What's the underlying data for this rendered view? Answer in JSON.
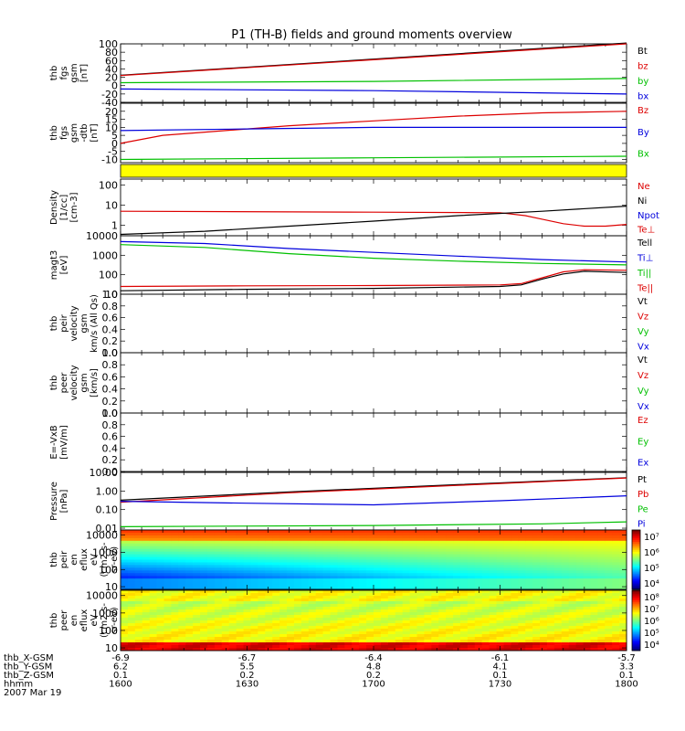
{
  "figure": {
    "title": "P1 (TH-B) fields and ground moments overview"
  },
  "chart_data": [
    {
      "type": "line",
      "ylabel_lines": [
        "thb",
        "fgs",
        "gsm",
        "[nT]"
      ],
      "ylim": [
        -40,
        100
      ],
      "yticks": [
        "100",
        "80",
        "60",
        "40",
        "20",
        "0",
        "-20",
        "-40"
      ],
      "xlim": [
        0,
        120
      ],
      "series": [
        {
          "name": "Bt",
          "color": "#000000",
          "x": [
            0,
            120
          ],
          "y": [
            25,
            102
          ]
        },
        {
          "name": "bz",
          "color": "#dd0000",
          "x": [
            0,
            120
          ],
          "y": [
            24,
            100
          ]
        },
        {
          "name": "by",
          "color": "#00c000",
          "x": [
            0,
            60,
            120
          ],
          "y": [
            7,
            10,
            17
          ]
        },
        {
          "name": "bx",
          "color": "#0000dd",
          "x": [
            0,
            60,
            120
          ],
          "y": [
            -8,
            -12,
            -20
          ]
        }
      ]
    },
    {
      "type": "line",
      "ylabel_lines": [
        "thb",
        "fgs",
        "gsm",
        "-dtb",
        "[nT]"
      ],
      "ylim": [
        -12,
        25
      ],
      "yticks": [
        "20",
        "15",
        "10",
        "5",
        "0",
        "-5",
        "-10"
      ],
      "xlim": [
        0,
        120
      ],
      "series": [
        {
          "name": "Bz",
          "color": "#dd0000",
          "x": [
            0,
            10,
            20,
            30,
            40,
            60,
            80,
            100,
            120
          ],
          "y": [
            0,
            5,
            7,
            9,
            11,
            14,
            17,
            19,
            20
          ]
        },
        {
          "name": "By",
          "color": "#0000dd",
          "x": [
            0,
            30,
            60,
            90,
            120
          ],
          "y": [
            8,
            9,
            10,
            10,
            10
          ]
        },
        {
          "name": "Bx",
          "color": "#00c000",
          "x": [
            0,
            60,
            120
          ],
          "y": [
            -10,
            -9,
            -8
          ]
        }
      ]
    },
    {
      "type": "bar",
      "ylabel_lines": [],
      "band_color": "#ffff00"
    },
    {
      "type": "line",
      "ylabel_lines": [
        "Density",
        "[1/cc]",
        "[cm-3]"
      ],
      "log": true,
      "ylim": [
        0.3,
        200
      ],
      "yticks": [
        "100",
        "10",
        "1"
      ],
      "xlim": [
        0,
        120
      ],
      "series": [
        {
          "name": "Ne",
          "color": "#dd0000",
          "x": [
            0,
            60,
            90,
            96,
            100,
            105,
            110,
            115,
            120
          ],
          "y": [
            5,
            4.5,
            4.2,
            3,
            2,
            1.2,
            0.9,
            0.9,
            1.1
          ]
        },
        {
          "name": "Ni",
          "color": "#000000",
          "x": [
            0,
            20,
            40,
            60,
            80,
            100,
            120
          ],
          "y": [
            0.35,
            0.5,
            0.9,
            1.6,
            3,
            5,
            9
          ]
        },
        {
          "name": "Npot",
          "color": "#0000dd",
          "x": [],
          "y": []
        },
        {
          "name": "Te⊥",
          "color": "#dd0000",
          "x": [],
          "y": []
        }
      ]
    },
    {
      "type": "line",
      "ylabel_lines": [
        "magt3",
        "[eV]"
      ],
      "log": true,
      "ylim": [
        10,
        10000
      ],
      "yticks": [
        "10000",
        "1000",
        "100",
        "10"
      ],
      "xlim": [
        0,
        120
      ],
      "series": [
        {
          "name": "Tell",
          "color": "#000000",
          "x": [
            0,
            30,
            60,
            90,
            95,
            100,
            105,
            110,
            120
          ],
          "y": [
            15,
            18,
            20,
            25,
            30,
            60,
            110,
            150,
            130
          ]
        },
        {
          "name": "Ti⊥",
          "color": "#0000dd",
          "x": [
            0,
            20,
            40,
            60,
            80,
            100,
            120
          ],
          "y": [
            5000,
            4000,
            2200,
            1400,
            900,
            600,
            450
          ]
        },
        {
          "name": "Ti||",
          "color": "#00c000",
          "x": [
            0,
            20,
            40,
            60,
            80,
            100,
            120
          ],
          "y": [
            3500,
            2500,
            1200,
            700,
            500,
            380,
            320
          ]
        },
        {
          "name": "Te||",
          "color": "#dd0000",
          "x": [
            0,
            30,
            60,
            90,
            95,
            100,
            105,
            110,
            120
          ],
          "y": [
            25,
            27,
            28,
            30,
            35,
            70,
            140,
            180,
            170
          ]
        }
      ]
    },
    {
      "type": "line",
      "ylabel_lines": [
        "thb",
        "peir",
        "velocity",
        "gsm",
        "km/s (All Qs)"
      ],
      "ylim": [
        0,
        1
      ],
      "yticks": [
        "1.0",
        "0.8",
        "0.6",
        "0.4",
        "0.2",
        "0.0"
      ],
      "xlim": [
        0,
        120
      ],
      "series": [
        {
          "name": "Vt",
          "color": "#000000",
          "x": [],
          "y": []
        },
        {
          "name": "Vz",
          "color": "#dd0000",
          "x": [],
          "y": []
        },
        {
          "name": "Vy",
          "color": "#00c000",
          "x": [],
          "y": []
        },
        {
          "name": "Vx",
          "color": "#0000dd",
          "x": [],
          "y": []
        }
      ]
    },
    {
      "type": "line",
      "ylabel_lines": [
        "thb",
        "peer",
        "velocity",
        "gsm",
        "[km/s]"
      ],
      "ylim": [
        0,
        1
      ],
      "yticks": [
        "1.0",
        "0.8",
        "0.6",
        "0.4",
        "0.2",
        "0.0"
      ],
      "xlim": [
        0,
        120
      ],
      "series": [
        {
          "name": "Vt",
          "color": "#000000",
          "x": [],
          "y": []
        },
        {
          "name": "Vz",
          "color": "#dd0000",
          "x": [],
          "y": []
        },
        {
          "name": "Vy",
          "color": "#00c000",
          "x": [],
          "y": []
        },
        {
          "name": "Vx",
          "color": "#0000dd",
          "x": [],
          "y": []
        }
      ]
    },
    {
      "type": "line",
      "ylabel_lines": [
        "E=-VxB",
        "[mV/m]"
      ],
      "ylim": [
        0,
        1
      ],
      "yticks": [
        "1.0",
        "0.8",
        "0.6",
        "0.4",
        "0.2",
        "0.0"
      ],
      "xlim": [
        0,
        120
      ],
      "series": [
        {
          "name": "Ez",
          "color": "#dd0000",
          "x": [],
          "y": []
        },
        {
          "name": "Ey",
          "color": "#00c000",
          "x": [],
          "y": []
        },
        {
          "name": "Ex",
          "color": "#0000dd",
          "x": [],
          "y": []
        }
      ]
    },
    {
      "type": "line",
      "ylabel_lines": [
        "Pressure",
        "[nPa]"
      ],
      "log": true,
      "ylim": [
        0.008,
        10
      ],
      "yticks": [
        "10.00",
        "1.00",
        "0.10",
        "0.01"
      ],
      "xlim": [
        0,
        120
      ],
      "series": [
        {
          "name": "Pt",
          "color": "#000000",
          "x": [
            0,
            40,
            80,
            120
          ],
          "y": [
            0.32,
            0.9,
            2.2,
            5.2
          ]
        },
        {
          "name": "Pb",
          "color": "#dd0000",
          "x": [
            0,
            40,
            80,
            120
          ],
          "y": [
            0.25,
            0.8,
            2.0,
            5.0
          ]
        },
        {
          "name": "Pe",
          "color": "#00c000",
          "x": [
            0,
            60,
            100,
            120
          ],
          "y": [
            0.012,
            0.014,
            0.017,
            0.022
          ]
        },
        {
          "name": "Pi",
          "color": "#0000dd",
          "x": [
            0,
            30,
            60,
            90,
            120
          ],
          "y": [
            0.28,
            0.22,
            0.18,
            0.3,
            0.55
          ]
        }
      ]
    },
    {
      "type": "heatmap",
      "ylabel_lines": [
        "thb",
        "peir",
        "en",
        "eflux",
        "eV",
        "(cm2-s-",
        "sr-eV)"
      ],
      "log": true,
      "ylim": [
        7,
        20000
      ],
      "yticks": [
        "10000",
        "1000",
        "100",
        "10"
      ],
      "xlim": [
        0,
        120
      ],
      "colorbar_ticks": [
        "10⁷",
        "10⁶",
        "10⁵",
        "10⁴"
      ],
      "colorbar_range_log": [
        3.5,
        7.5
      ]
    },
    {
      "type": "heatmap",
      "ylabel_lines": [
        "thb",
        "peer",
        "en",
        "eflux",
        "eV",
        "(cm2-s-",
        "sr-eV)"
      ],
      "log": true,
      "ylim": [
        7,
        20000
      ],
      "yticks": [
        "10000",
        "1000",
        "100",
        "10"
      ],
      "xlim": [
        0,
        120
      ],
      "colorbar_ticks": [
        "10⁸",
        "10⁷",
        "10⁶",
        "10⁵",
        "10⁴"
      ],
      "colorbar_range_log": [
        3.5,
        8.5
      ]
    }
  ],
  "footer": {
    "x_positions": [
      0,
      30,
      60,
      90,
      120
    ],
    "rows": [
      {
        "label": "thb_X-GSM",
        "values": [
          "-6.9",
          "-6.7",
          "-6.4",
          "-6.1",
          "-5.7"
        ]
      },
      {
        "label": "thb_Y-GSM",
        "values": [
          "6.2",
          "5.5",
          "4.8",
          "4.1",
          "3.3"
        ]
      },
      {
        "label": "thb_Z-GSM",
        "values": [
          "0.1",
          "0.2",
          "0.2",
          "0.1",
          "0.1"
        ]
      },
      {
        "label": "hhmm",
        "values": [
          "1600",
          "1630",
          "1700",
          "1730",
          "1800"
        ]
      }
    ],
    "date": "2007 Mar 19"
  }
}
